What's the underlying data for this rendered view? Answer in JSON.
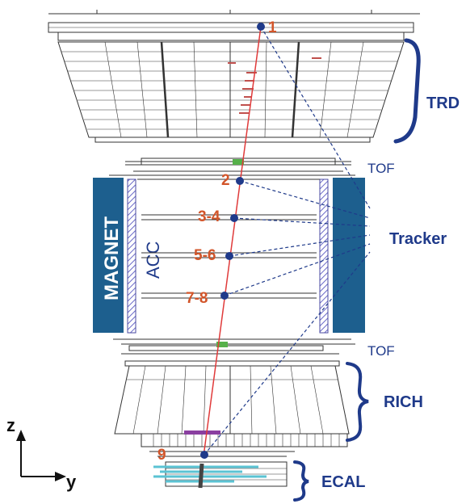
{
  "labels": {
    "trd": "TRD",
    "tof_top": "TOF",
    "tof_bottom": "TOF",
    "tracker": "Tracker",
    "rich": "RICH",
    "ecal": "ECAL",
    "magnet": "MAGNET",
    "acc": "ACC"
  },
  "plane_labels": {
    "p1": "1",
    "p2": "2",
    "p34": "3-4",
    "p56": "5-6",
    "p78": "7-8",
    "p9": "9"
  },
  "axes": {
    "z": "z",
    "y": "y"
  },
  "colors": {
    "navy": "#1f3a8a",
    "magnet_blue": "#1d5f8e",
    "track_red": "#e03a3a",
    "plane_orange": "#d2552a",
    "tof_green": "#56b04a",
    "ecal_cyan": "#5bc3d3",
    "rich_purple": "#8a3fa0"
  }
}
